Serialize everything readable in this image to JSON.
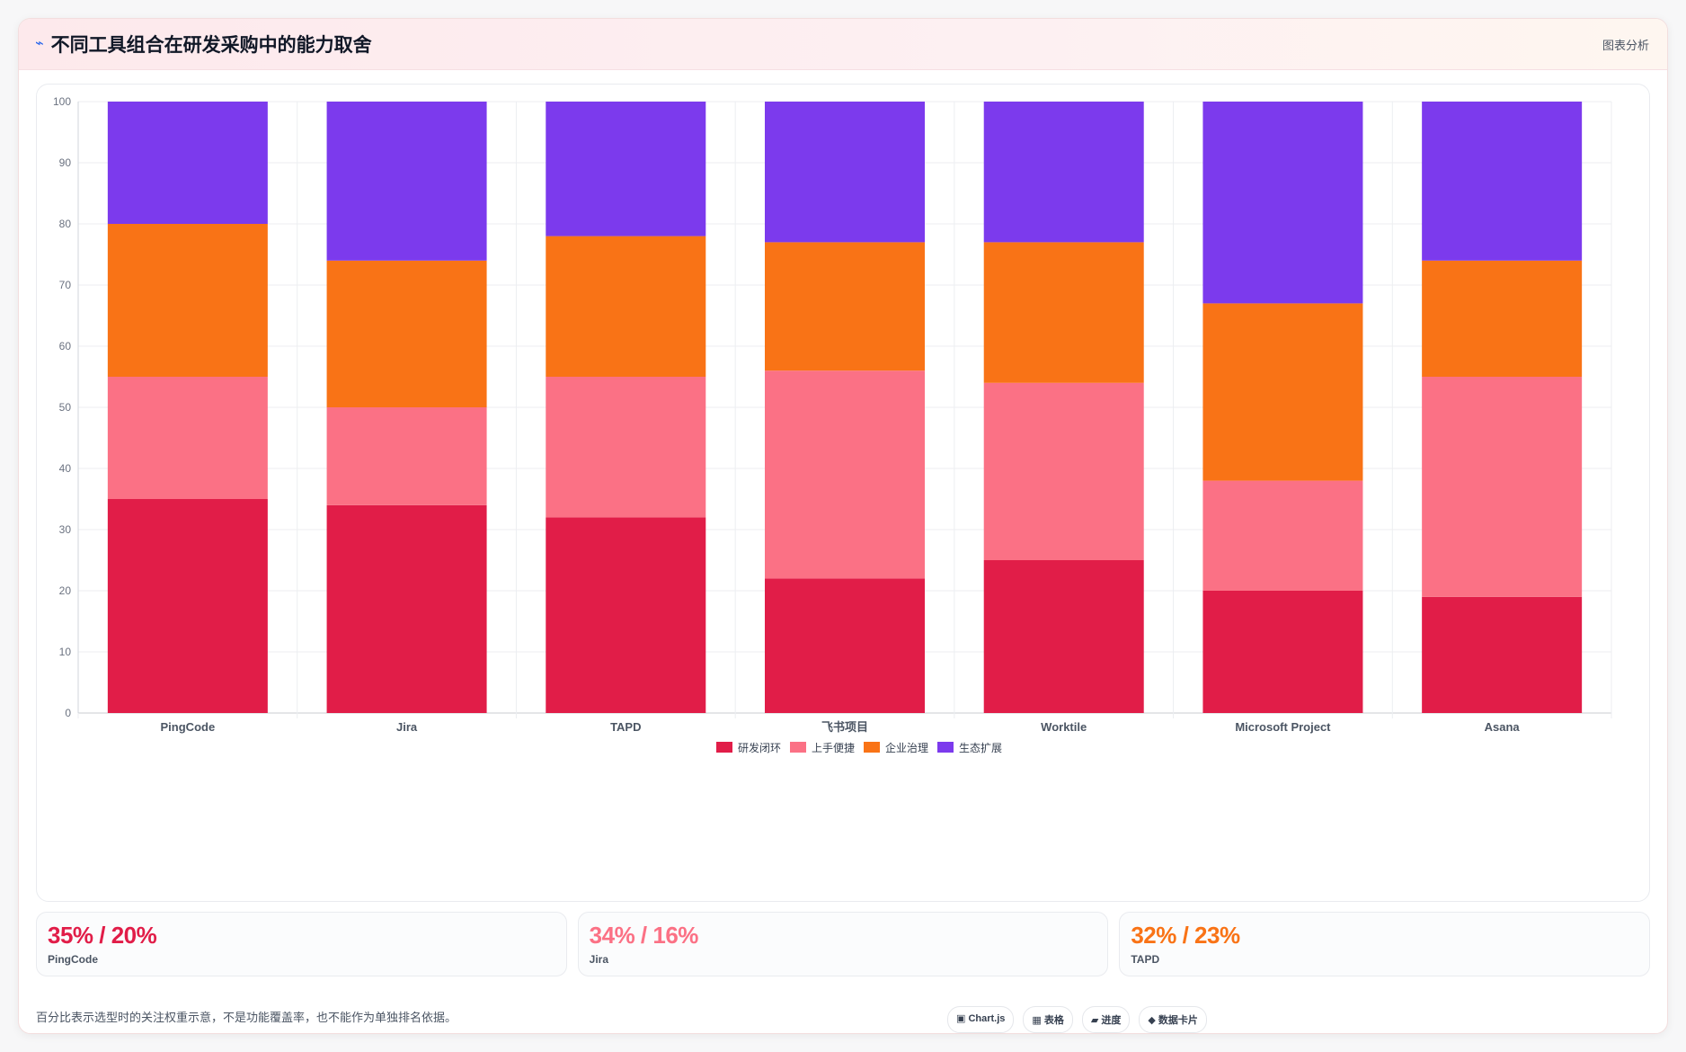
{
  "header": {
    "icon": "sparkle-icon",
    "title": "不同工具组合在研发采购中的能力取舍",
    "right_label": "图表分析"
  },
  "chart_data": {
    "type": "bar",
    "stacked": true,
    "title": "",
    "xlabel": "",
    "ylabel": "",
    "ylim": [
      0,
      100
    ],
    "yticks": [
      0,
      10,
      20,
      30,
      40,
      50,
      60,
      70,
      80,
      90,
      100
    ],
    "grid": true,
    "legend_position": "bottom",
    "categories": [
      "PingCode",
      "Jira",
      "TAPD",
      "飞书项目",
      "Worktile",
      "Microsoft Project",
      "Asana"
    ],
    "series": [
      {
        "name": "研发闭环",
        "color": "#e11d48",
        "values": [
          35,
          34,
          32,
          22,
          25,
          20,
          19
        ]
      },
      {
        "name": "上手便捷",
        "color": "#fb7185",
        "values": [
          20,
          16,
          23,
          34,
          29,
          18,
          36
        ]
      },
      {
        "name": "企业治理",
        "color": "#f97316",
        "values": [
          25,
          24,
          23,
          21,
          23,
          29,
          19
        ]
      },
      {
        "name": "生态扩展",
        "color": "#7c3aed",
        "values": [
          20,
          26,
          22,
          23,
          23,
          33,
          26
        ]
      }
    ]
  },
  "stats": [
    {
      "value": "35% / 20%",
      "label": "PingCode",
      "color": "#e11d48"
    },
    {
      "value": "34% / 16%",
      "label": "Jira",
      "color": "#fb7185"
    },
    {
      "value": "32% / 23%",
      "label": "TAPD",
      "color": "#f97316"
    }
  ],
  "footer": {
    "note": "百分比表示选型时的关注权重示意，不是功能覆盖率，也不能作为单独排名依据。",
    "badges": [
      {
        "icon": "chart-square-icon",
        "label": "▣ Chart.js"
      },
      {
        "icon": "table-icon",
        "label": "▦ 表格"
      },
      {
        "icon": "progress-icon",
        "label": "▰ 进度"
      },
      {
        "icon": "diamond-icon",
        "label": "◆ 数据卡片"
      }
    ]
  }
}
